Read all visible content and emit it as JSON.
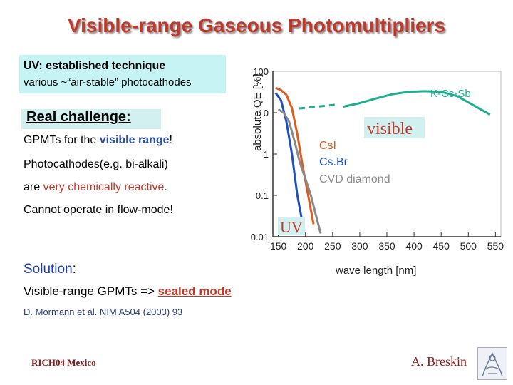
{
  "title": "Visible-range Gaseous Photomultipliers",
  "uv_box": {
    "title": "UV: established technique",
    "subtitle": "various ~“air-stable” photocathodes"
  },
  "real_challenge": {
    "label": "Real challenge:",
    "line1_pre": "GPMTs for the ",
    "line1_highlight": "visible range",
    "line1_post": "!",
    "line2": "Photocathodes(e.g. bi-alkali)",
    "line3_pre": "are ",
    "line3_highlight": "very chemically reactive",
    "line3_post": ".",
    "line4": "Cannot operate in flow-mode!"
  },
  "solution": {
    "label": "Solution",
    "colon": ":",
    "line_pre": "Visible-range GPMTs => ",
    "line_highlight": "sealed mode"
  },
  "reference": "D. Mörmann et al. NIM A504 (2003) 93",
  "footer": {
    "left": "RICH04 Mexico",
    "right": "A. Breskin"
  },
  "colors": {
    "title": "#c0392b",
    "uv_box": "#c6f4f4",
    "kcssb": "#1fae8f",
    "csi": "#e05a1c",
    "csbr": "#1f4fc1",
    "cvd": "#8a8a8a"
  },
  "chart_data": {
    "type": "line",
    "title": "",
    "xlabel": "wave length [nm]",
    "ylabel": "absolute QE [%]",
    "xlim": [
      140,
      560
    ],
    "ylim_log": [
      0.01,
      100
    ],
    "x_ticks": [
      "150",
      "200",
      "250",
      "300",
      "350",
      "400",
      "450",
      "500",
      "550"
    ],
    "y_ticks": [
      "100",
      "10",
      "1",
      "0.1",
      "0.01"
    ],
    "annotations": {
      "visible": "visible",
      "uv": "UV"
    },
    "series": [
      {
        "name": "K-Cs-Sb",
        "x": [
          270,
          300,
          330,
          360,
          390,
          420,
          450,
          480,
          510,
          540
        ],
        "y": [
          14,
          17,
          22,
          28,
          32,
          33,
          32,
          25,
          15,
          9
        ]
      },
      {
        "name": "CsI",
        "x": [
          145,
          155,
          165,
          175,
          185,
          195,
          205,
          215
        ],
        "y": [
          40,
          35,
          27,
          13,
          3,
          0.5,
          0.1,
          0.02
        ]
      },
      {
        "name": "Cs.Br",
        "x": [
          145,
          155,
          165,
          175,
          185,
          195
        ],
        "y": [
          30,
          20,
          6,
          1,
          0.1,
          0.02
        ]
      },
      {
        "name": "CVD diamond",
        "x": [
          150,
          160,
          170,
          180,
          190,
          200,
          210,
          220,
          228
        ],
        "y": [
          12,
          10,
          6,
          2,
          0.6,
          0.25,
          0.1,
          0.03,
          0.012
        ]
      }
    ]
  }
}
